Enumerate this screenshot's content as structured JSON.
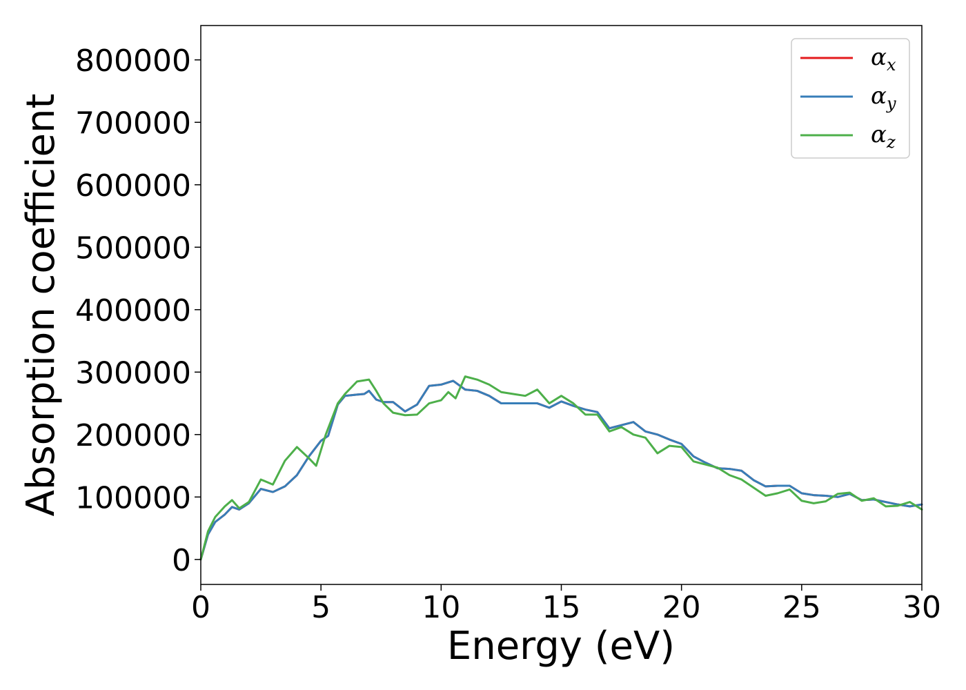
{
  "chart_data": {
    "type": "line",
    "title": "",
    "xlabel": "Energy (eV)",
    "ylabel": "Absorption coefficient",
    "xlim": [
      0,
      30
    ],
    "ylim": [
      -40000,
      855000
    ],
    "xticks": [
      0,
      5,
      10,
      15,
      20,
      25,
      30
    ],
    "yticks": [
      0,
      100000,
      200000,
      300000,
      400000,
      500000,
      600000,
      700000,
      800000
    ],
    "grid": false,
    "legend_position": "top-right",
    "series": [
      {
        "name": "α_x",
        "legend_base": "α",
        "legend_sub": "x",
        "color": "#e41a1c",
        "x": [
          0,
          0.3,
          0.6,
          1.0,
          1.3,
          1.6,
          2.0,
          2.5,
          3.0,
          3.5,
          4.0,
          4.5,
          5.0,
          5.3,
          5.7,
          6.0,
          6.5,
          6.8,
          7.0,
          7.3,
          7.6,
          8.0,
          8.5,
          9.0,
          9.5,
          10.0,
          10.5,
          11.0,
          11.5,
          12.0,
          12.5,
          13.0,
          13.5,
          14.0,
          14.5,
          15.0,
          15.5,
          16.0,
          16.5,
          17.0,
          17.5,
          18.0,
          18.5,
          19.0,
          19.5,
          20.0,
          20.5,
          21.0,
          21.5,
          22.0,
          22.5,
          23.0,
          23.5,
          24.0,
          24.5,
          25.0,
          25.5,
          26.0,
          26.5,
          27.0,
          27.5,
          28.0,
          28.5,
          29.0,
          29.5,
          30.0
        ],
        "values": [
          0,
          40000,
          60000,
          72000,
          84000,
          80000,
          90000,
          113000,
          108000,
          117000,
          135000,
          165000,
          190000,
          198000,
          248000,
          262000,
          264000,
          265000,
          270000,
          256000,
          252000,
          252000,
          237000,
          248000,
          278000,
          280000,
          286000,
          272000,
          270000,
          262000,
          250000,
          250000,
          250000,
          250000,
          243000,
          253000,
          246000,
          240000,
          236000,
          210000,
          215000,
          220000,
          205000,
          200000,
          192000,
          185000,
          165000,
          155000,
          146000,
          145000,
          142000,
          127000,
          117000,
          118000,
          118000,
          106000,
          103000,
          102000,
          100000,
          105000,
          95000,
          96000,
          92000,
          88000,
          85000,
          88000
        ]
      },
      {
        "name": "α_y",
        "legend_base": "α",
        "legend_sub": "y",
        "color": "#377eb8",
        "x": [
          0,
          0.3,
          0.6,
          1.0,
          1.3,
          1.6,
          2.0,
          2.5,
          3.0,
          3.5,
          4.0,
          4.5,
          5.0,
          5.3,
          5.7,
          6.0,
          6.5,
          6.8,
          7.0,
          7.3,
          7.6,
          8.0,
          8.5,
          9.0,
          9.5,
          10.0,
          10.5,
          11.0,
          11.5,
          12.0,
          12.5,
          13.0,
          13.5,
          14.0,
          14.5,
          15.0,
          15.5,
          16.0,
          16.5,
          17.0,
          17.5,
          18.0,
          18.5,
          19.0,
          19.5,
          20.0,
          20.5,
          21.0,
          21.5,
          22.0,
          22.5,
          23.0,
          23.5,
          24.0,
          24.5,
          25.0,
          25.5,
          26.0,
          26.5,
          27.0,
          27.5,
          28.0,
          28.5,
          29.0,
          29.5,
          30.0
        ],
        "values": [
          0,
          40000,
          60000,
          72000,
          84000,
          80000,
          90000,
          113000,
          108000,
          117000,
          135000,
          165000,
          190000,
          198000,
          248000,
          262000,
          264000,
          265000,
          270000,
          256000,
          252000,
          252000,
          237000,
          248000,
          278000,
          280000,
          286000,
          272000,
          270000,
          262000,
          250000,
          250000,
          250000,
          250000,
          243000,
          253000,
          246000,
          240000,
          236000,
          210000,
          215000,
          220000,
          205000,
          200000,
          192000,
          185000,
          165000,
          155000,
          146000,
          145000,
          142000,
          127000,
          117000,
          118000,
          118000,
          106000,
          103000,
          102000,
          100000,
          105000,
          95000,
          96000,
          92000,
          88000,
          85000,
          88000
        ]
      },
      {
        "name": "α_z",
        "legend_base": "α",
        "legend_sub": "z",
        "color": "#4daf4a",
        "x": [
          0,
          0.3,
          0.6,
          1.0,
          1.3,
          1.6,
          2.0,
          2.5,
          3.0,
          3.5,
          4.0,
          4.5,
          4.8,
          5.2,
          5.7,
          6.0,
          6.5,
          7.0,
          7.3,
          7.6,
          8.0,
          8.5,
          9.0,
          9.5,
          10.0,
          10.3,
          10.6,
          11.0,
          11.5,
          12.0,
          12.5,
          13.0,
          13.5,
          14.0,
          14.5,
          15.0,
          15.5,
          16.0,
          16.5,
          17.0,
          17.5,
          18.0,
          18.5,
          19.0,
          19.5,
          20.0,
          20.5,
          21.0,
          21.5,
          22.0,
          22.5,
          23.0,
          23.5,
          24.0,
          24.5,
          25.0,
          25.5,
          26.0,
          26.5,
          27.0,
          27.5,
          28.0,
          28.5,
          29.0,
          29.5,
          30.0
        ],
        "values": [
          0,
          45000,
          68000,
          85000,
          95000,
          82000,
          92000,
          128000,
          120000,
          158000,
          180000,
          162000,
          150000,
          200000,
          250000,
          265000,
          285000,
          288000,
          270000,
          250000,
          235000,
          231000,
          232000,
          250000,
          255000,
          268000,
          258000,
          293000,
          288000,
          280000,
          268000,
          265000,
          262000,
          272000,
          250000,
          262000,
          250000,
          232000,
          232000,
          205000,
          212000,
          200000,
          195000,
          170000,
          182000,
          180000,
          157000,
          152000,
          147000,
          135000,
          128000,
          115000,
          102000,
          106000,
          112000,
          94000,
          90000,
          93000,
          105000,
          107000,
          94000,
          98000,
          85000,
          86000,
          92000,
          80000
        ]
      }
    ]
  }
}
